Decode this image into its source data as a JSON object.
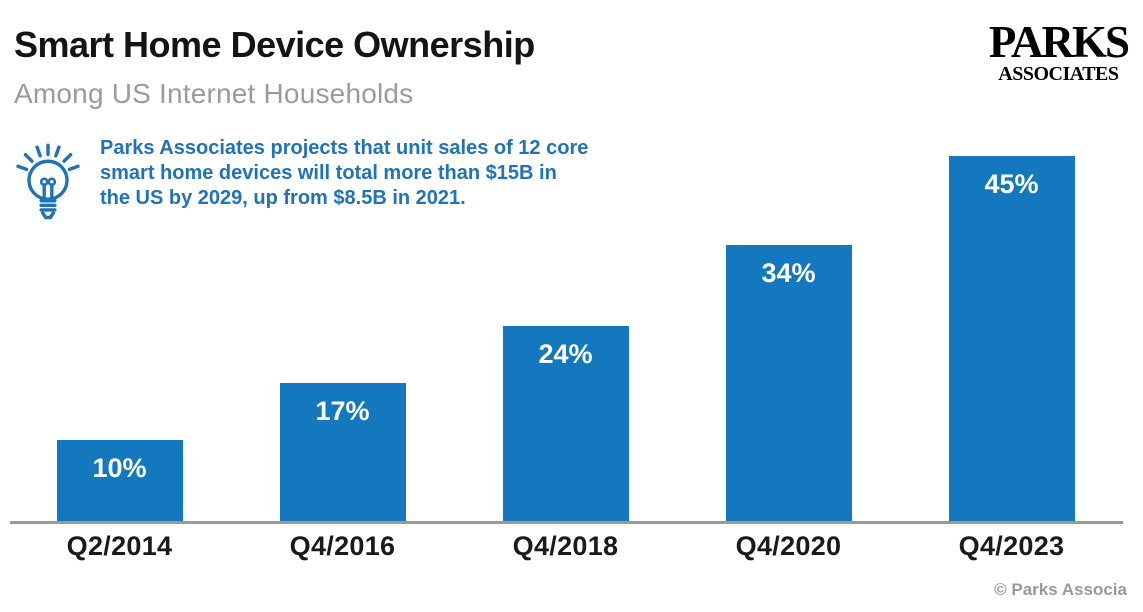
{
  "page": {
    "title": "Smart Home Device Ownership",
    "subtitle": "Among US Internet Households",
    "footer": "© Parks Associa"
  },
  "logo": {
    "line1": "PARKS",
    "line2": "ASSOCIATES"
  },
  "callout": {
    "icon": "lightbulb-icon",
    "lines": [
      "Parks Associates projects that unit sales of 12 core",
      "smart home devices will total more than $15B in",
      "the US by 2029, up from $8.5B in 2021."
    ]
  },
  "colors": {
    "bar_blue": "#1478BE",
    "accent_blue": "#2173B9",
    "title_black": "#141414",
    "subtitle_gray": "#9B9B9B",
    "axis_gray": "#9A9A9A",
    "footer_gray": "#9A9A9A",
    "value_label_white": "#FFFFFF"
  },
  "chart_data": {
    "type": "bar",
    "categories": [
      "Q2/2014",
      "Q4/2016",
      "Q4/2018",
      "Q4/2020",
      "Q4/2023"
    ],
    "values": [
      10,
      17,
      24,
      34,
      45
    ],
    "value_labels": [
      "10%",
      "17%",
      "24%",
      "34%",
      "45%"
    ],
    "title": "Smart Home Device Ownership",
    "subtitle": "Among US Internet Households",
    "xlabel": "",
    "ylabel": "",
    "ylim": [
      0,
      50
    ],
    "grid": false,
    "legend": false,
    "bar_color": "#1478BE",
    "value_label_color": "#FFFFFF",
    "value_label_position": "inside-top"
  }
}
